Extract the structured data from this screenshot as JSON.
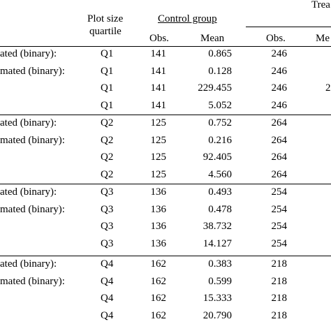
{
  "header": {
    "plot_size_line1": "Plot size",
    "plot_size_line2": "quartile",
    "control_group": "Control group",
    "treatment_partial": "Trea",
    "obs": "Obs.",
    "mean": "Mean",
    "treat_obs": "Obs.",
    "treat_mean_partial": "Me"
  },
  "groups": [
    {
      "quartile": "Q1",
      "control_obs": "141",
      "treat_obs": "246",
      "rows": [
        {
          "label": "ated (binary):",
          "mean": "0.865",
          "treat_mean_partial": ""
        },
        {
          "label": "mated (binary):",
          "mean": "0.128",
          "treat_mean_partial": ""
        },
        {
          "label": "",
          "mean": "229.455",
          "treat_mean_partial": "2"
        },
        {
          "label": "",
          "mean": "5.052",
          "treat_mean_partial": ""
        }
      ]
    },
    {
      "quartile": "Q2",
      "control_obs": "125",
      "treat_obs": "264",
      "rows": [
        {
          "label": "ated (binary):",
          "mean": "0.752",
          "treat_mean_partial": ""
        },
        {
          "label": "mated (binary):",
          "mean": "0.216",
          "treat_mean_partial": ""
        },
        {
          "label": "",
          "mean": "92.405",
          "treat_mean_partial": ""
        },
        {
          "label": "",
          "mean": "4.560",
          "treat_mean_partial": ""
        }
      ]
    },
    {
      "quartile": "Q3",
      "control_obs": "136",
      "treat_obs": "254",
      "rows": [
        {
          "label": "ated (binary):",
          "mean": "0.493",
          "treat_mean_partial": ""
        },
        {
          "label": "mated (binary):",
          "mean": "0.478",
          "treat_mean_partial": ""
        },
        {
          "label": "",
          "mean": "38.732",
          "treat_mean_partial": ""
        },
        {
          "label": "",
          "mean": "14.127",
          "treat_mean_partial": ""
        }
      ]
    },
    {
      "quartile": "Q4",
      "control_obs": "162",
      "treat_obs": "218",
      "rows": [
        {
          "label": "ated (binary):",
          "mean": "0.383",
          "treat_mean_partial": ""
        },
        {
          "label": "mated (binary):",
          "mean": "0.599",
          "treat_mean_partial": ""
        },
        {
          "label": "",
          "mean": "15.333",
          "treat_mean_partial": ""
        },
        {
          "label": "",
          "mean": "20.790",
          "treat_mean_partial": ""
        }
      ]
    }
  ]
}
